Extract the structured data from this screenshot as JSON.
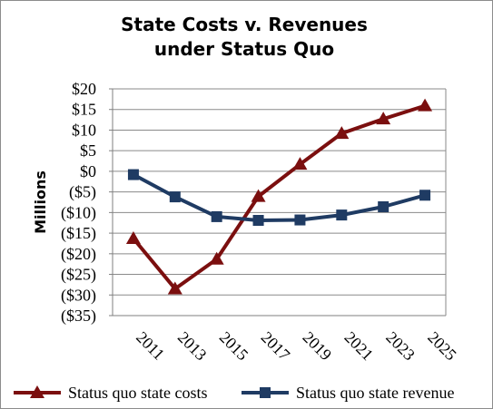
{
  "chart_data": {
    "type": "line",
    "title": [
      "State Costs v. Revenues",
      "under Status Quo"
    ],
    "xlabel": "",
    "ylabel": "Millions",
    "categories": [
      "2011",
      "2013",
      "2015",
      "2017",
      "2019",
      "2021",
      "2023",
      "2025"
    ],
    "y_tick_labels": [
      "$20",
      "$15",
      "$10",
      "$5",
      "$0",
      "($5)",
      "($10)",
      "($15)",
      "($20)",
      "($25)",
      "($30)",
      "($35)"
    ],
    "ylim": [
      -35,
      20
    ],
    "y_step": 5,
    "grid": true,
    "legend_position": "bottom",
    "series": [
      {
        "name": "Status quo state costs",
        "color": "#7b0f0f",
        "marker": "triangle",
        "values": [
          -16.3,
          -28.5,
          -21.3,
          -6.1,
          1.7,
          9.2,
          12.7,
          15.9
        ]
      },
      {
        "name": "Status quo state revenue",
        "color": "#1f3b63",
        "marker": "square",
        "values": [
          -0.8,
          -6.2,
          -11.0,
          -11.9,
          -11.8,
          -10.6,
          -8.6,
          -5.8
        ]
      }
    ]
  }
}
